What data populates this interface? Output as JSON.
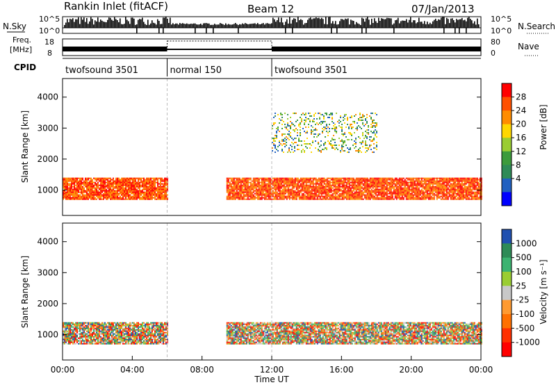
{
  "header": {
    "station": "Rankin Inlet (fitACF)",
    "beam": "Beam 12",
    "date": "07/Jan/2013"
  },
  "noise_panel": {
    "left_label": "N.Sky",
    "right_label": "N.Search",
    "left_ticks": [
      "10^5",
      "10^0"
    ],
    "right_ticks": [
      "10^5",
      "10^0"
    ]
  },
  "freq_panel": {
    "left_label_1": "Freq.",
    "left_label_2": "[MHz]",
    "right_label": "Nave",
    "left_ticks": [
      "18",
      "8"
    ],
    "right_ticks": [
      "80",
      "0"
    ]
  },
  "cpid": {
    "label": "CPID",
    "segments": [
      {
        "name": "twofsound 3501",
        "start_hour": 0,
        "end_hour": 6
      },
      {
        "name": "normal 150",
        "start_hour": 6,
        "end_hour": 12
      },
      {
        "name": "twofsound 3501",
        "start_hour": 12,
        "end_hour": 24
      }
    ]
  },
  "chart_data": [
    {
      "type": "heatmap",
      "parameter": "power",
      "ylabel": "Slant Range [km]",
      "yticks": [
        1000,
        2000,
        3000,
        4000
      ],
      "ylim": [
        180,
        4600
      ],
      "xlim": [
        0,
        24
      ],
      "colorbar": {
        "label": "Power [dB]",
        "ticks": [
          "28",
          "24",
          "20",
          "16",
          "12",
          "8",
          "4"
        ],
        "colors": [
          "#ff0000",
          "#ff5000",
          "#ff8c00",
          "#ffd700",
          "#9acd32",
          "#3c9b3c",
          "#2e8b57",
          "#2060c0",
          "#0000ff"
        ]
      },
      "regions": [
        {
          "from_hour": 0,
          "to_hour": 6,
          "range_km": [
            700,
            1400
          ],
          "level": "strong"
        },
        {
          "from_hour": 9.4,
          "to_hour": 24,
          "range_km": [
            700,
            1400
          ],
          "level": "strong"
        },
        {
          "from_hour": 12,
          "to_hour": 18,
          "range_km": [
            2200,
            3500
          ],
          "level": "weak"
        }
      ]
    },
    {
      "type": "heatmap",
      "parameter": "velocity",
      "ylabel": "Slant Range [km]",
      "xlabel": "Time UT",
      "yticks": [
        1000,
        2000,
        3000,
        4000
      ],
      "ylim": [
        180,
        4600
      ],
      "xlim": [
        0,
        24
      ],
      "xticks": [
        "00:00",
        "04:00",
        "08:00",
        "12:00",
        "16:00",
        "20:00",
        "00:00"
      ],
      "colorbar": {
        "label": "Velocity [m s⁻¹]",
        "ticks": [
          "1000",
          "500",
          "100",
          "25",
          "-25",
          "-100",
          "-500",
          "-1000"
        ],
        "colors": [
          "#2050b0",
          "#2e8b57",
          "#3cb371",
          "#9acd32",
          "#c8c8c8",
          "#ff9a30",
          "#ff7000",
          "#ff3000",
          "#ff0000"
        ]
      },
      "regions": [
        {
          "from_hour": 0,
          "to_hour": 6,
          "range_km": [
            700,
            1400
          ],
          "level": "mixed"
        },
        {
          "from_hour": 9.4,
          "to_hour": 24,
          "range_km": [
            700,
            1400
          ],
          "level": "mixed"
        }
      ]
    }
  ]
}
